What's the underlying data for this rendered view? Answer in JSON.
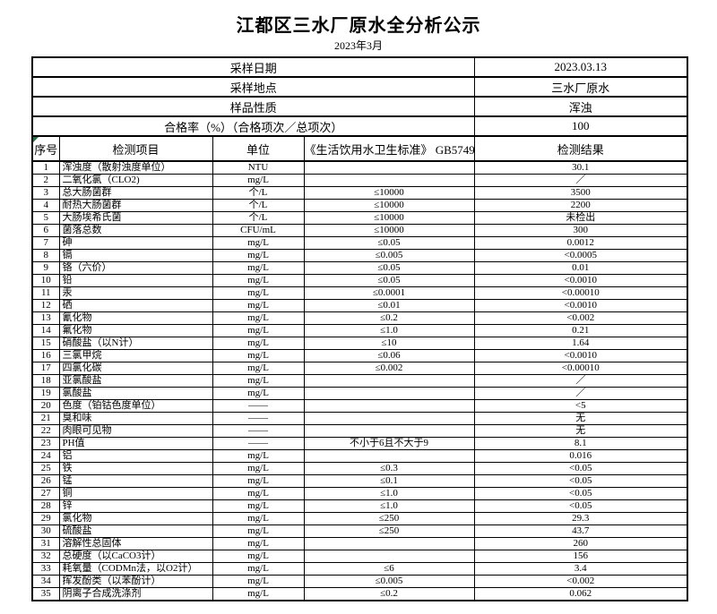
{
  "page": {
    "title": "江都区三水厂原水全分析公示",
    "subtitle": "2023年3月"
  },
  "colors": {
    "cell_flag": "#217346",
    "border": "#000000",
    "background": "#ffffff"
  },
  "icons": {
    "cell_flag_icon": "excel-corner-triangle"
  },
  "info_rows": [
    {
      "label": "采样日期",
      "value": "2023.03.13"
    },
    {
      "label": "采样地点",
      "value": "三水厂原水"
    },
    {
      "label": "样品性质",
      "value": "浑浊"
    },
    {
      "label": "合格率（%）（合格项次／总项次）",
      "value": "100"
    }
  ],
  "columns": [
    "序号",
    "检测项目",
    "单位",
    "《生活饮用水卫生标准》 GB5749",
    "检测结果"
  ],
  "rows": [
    {
      "no": "1",
      "item": "浑浊度（散射浊度单位）",
      "unit": "NTU",
      "standard": "",
      "result": "30.1"
    },
    {
      "no": "2",
      "item": "二氧化氯（CLO2)",
      "unit": "mg/L",
      "standard": "",
      "result": "／"
    },
    {
      "no": "3",
      "item": "总大肠菌群",
      "unit": "个/L",
      "standard": "≤10000",
      "result": "3500"
    },
    {
      "no": "4",
      "item": "耐热大肠菌群",
      "unit": "个/L",
      "standard": "≤10000",
      "result": "2200"
    },
    {
      "no": "5",
      "item": "大肠埃希氏菌",
      "unit": "个/L",
      "standard": "≤10000",
      "result": "未检出"
    },
    {
      "no": "6",
      "item": "菌落总数",
      "unit": "CFU/mL",
      "standard": "≤10000",
      "result": "300"
    },
    {
      "no": "7",
      "item": "砷",
      "unit": "mg/L",
      "standard": "≤0.05",
      "result": "0.0012"
    },
    {
      "no": "8",
      "item": "镉",
      "unit": "mg/L",
      "standard": "≤0.005",
      "result": "<0.0005"
    },
    {
      "no": "9",
      "item": "铬（六价）",
      "unit": "mg/L",
      "standard": "≤0.05",
      "result": "0.01"
    },
    {
      "no": "10",
      "item": "铅",
      "unit": "mg/L",
      "standard": "≤0.05",
      "result": "<0.0010"
    },
    {
      "no": "11",
      "item": "汞",
      "unit": "mg/L",
      "standard": "≤0.0001",
      "result": "<0.00010"
    },
    {
      "no": "12",
      "item": "硒",
      "unit": "mg/L",
      "standard": "≤0.01",
      "result": "<0.0010"
    },
    {
      "no": "13",
      "item": "氰化物",
      "unit": "mg/L",
      "standard": "≤0.2",
      "result": "<0.002"
    },
    {
      "no": "14",
      "item": "氟化物",
      "unit": "mg/L",
      "standard": "≤1.0",
      "result": "0.21"
    },
    {
      "no": "15",
      "item": "硝酸盐（以N计）",
      "unit": "mg/L",
      "standard": "≤10",
      "result": "1.64"
    },
    {
      "no": "16",
      "item": "三氯甲烷",
      "unit": "mg/L",
      "standard": "≤0.06",
      "result": "<0.0010"
    },
    {
      "no": "17",
      "item": "四氯化碳",
      "unit": "mg/L",
      "standard": "≤0.002",
      "result": "<0.00010"
    },
    {
      "no": "18",
      "item": "亚氯酸盐",
      "unit": "mg/L",
      "standard": "",
      "result": "／"
    },
    {
      "no": "19",
      "item": "氯酸盐",
      "unit": "mg/L",
      "standard": "",
      "result": "／"
    },
    {
      "no": "20",
      "item": "色度（铂钴色度单位）",
      "unit": "——",
      "standard": "",
      "result": "<5"
    },
    {
      "no": "21",
      "item": "臭和味",
      "unit": "——",
      "standard": "",
      "result": "无"
    },
    {
      "no": "22",
      "item": "肉眼可见物",
      "unit": "——",
      "standard": "",
      "result": "无"
    },
    {
      "no": "23",
      "item": "PH值",
      "unit": "——",
      "standard": "不小于6且不大于9",
      "result": "8.1"
    },
    {
      "no": "24",
      "item": "铝",
      "unit": "mg/L",
      "standard": "",
      "result": "0.016"
    },
    {
      "no": "25",
      "item": "铁",
      "unit": "mg/L",
      "standard": "≤0.3",
      "result": "<0.05"
    },
    {
      "no": "26",
      "item": "锰",
      "unit": "mg/L",
      "standard": "≤0.1",
      "result": "<0.05"
    },
    {
      "no": "27",
      "item": "铜",
      "unit": "mg/L",
      "standard": "≤1.0",
      "result": "<0.05"
    },
    {
      "no": "28",
      "item": "锌",
      "unit": "mg/L",
      "standard": "≤1.0",
      "result": "<0.05"
    },
    {
      "no": "29",
      "item": "氯化物",
      "unit": "mg/L",
      "standard": "≤250",
      "result": "29.3"
    },
    {
      "no": "30",
      "item": "硫酸盐",
      "unit": "mg/L",
      "standard": "≤250",
      "result": "43.7"
    },
    {
      "no": "31",
      "item": "溶解性总固体",
      "unit": "mg/L",
      "standard": "",
      "result": "260"
    },
    {
      "no": "32",
      "item": "总硬度（以CaCO3计）",
      "unit": "mg/L",
      "standard": "",
      "result": "156"
    },
    {
      "no": "33",
      "item": "耗氧量（CODMn法，以O2计）",
      "unit": "mg/L",
      "standard": "≤6",
      "result": "3.4"
    },
    {
      "no": "34",
      "item": "挥发酚类（以苯酚计）",
      "unit": "mg/L",
      "standard": "≤0.005",
      "result": "<0.002"
    },
    {
      "no": "35",
      "item": "阴离子合成洗涤剂",
      "unit": "mg/L",
      "standard": "≤0.2",
      "result": "0.062"
    }
  ]
}
